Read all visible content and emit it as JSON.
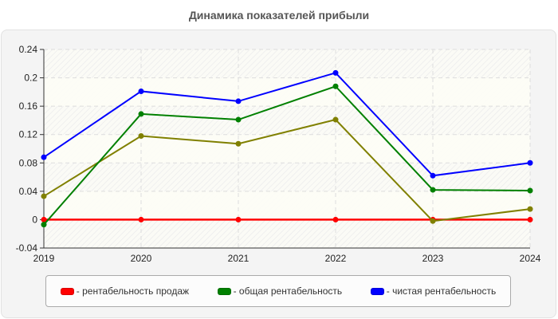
{
  "title": "Динамика показателей прибыли",
  "chart_data": {
    "type": "line",
    "title": "Динамика показателей прибыли",
    "xlabel": "",
    "ylabel": "",
    "categories": [
      "2019",
      "2020",
      "2021",
      "2022",
      "2023",
      "2024"
    ],
    "ylim": [
      -0.04,
      0.24
    ],
    "yticks": [
      "-0.04",
      "0",
      "0.04",
      "0.08",
      "0.12",
      "0.16",
      "0.2",
      "0.24"
    ],
    "grid": true,
    "legend_position": "bottom",
    "series": [
      {
        "name": "рентабельность продаж",
        "color": "#ff0000",
        "values": [
          0,
          0,
          0,
          0,
          0,
          0
        ]
      },
      {
        "name": "общая рентабельность",
        "color": "#008000",
        "values": [
          -0.007,
          0.149,
          0.141,
          0.188,
          0.042,
          0.041
        ]
      },
      {
        "name": "чистая рентабельность",
        "color": "#0000ff",
        "values": [
          0.088,
          0.181,
          0.167,
          0.207,
          0.062,
          0.08
        ]
      },
      {
        "name": "",
        "color": "#808000",
        "values": [
          0.033,
          0.118,
          0.107,
          0.141,
          -0.002,
          0.015
        ],
        "in_legend": false
      }
    ]
  },
  "legend": {
    "items": [
      {
        "label": "- рентабельность продаж",
        "color": "#ff0000"
      },
      {
        "label": "- общая рентабельность",
        "color": "#008000"
      },
      {
        "label": "- чистая рентабельность",
        "color": "#0000ff"
      }
    ]
  }
}
